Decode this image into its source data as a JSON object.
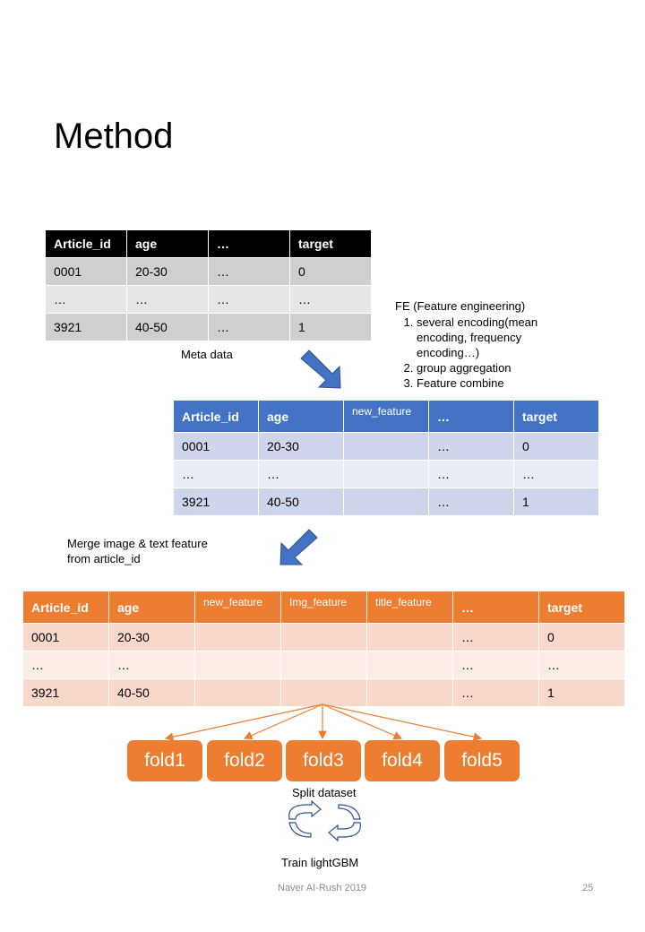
{
  "title": "Method",
  "table_meta": {
    "headers": [
      "Article_id",
      "age",
      "…",
      "target"
    ],
    "rows": [
      [
        "0001",
        "20-30",
        "…",
        "0"
      ],
      [
        "…",
        "…",
        "…",
        "…"
      ],
      [
        "3921",
        "40-50",
        "…",
        "1"
      ]
    ],
    "caption": "Meta data"
  },
  "fe_note": {
    "title": "FE (Feature engineering)",
    "items": [
      "several encoding(mean encoding, frequency encoding…)",
      "group aggregation",
      "Feature combine"
    ]
  },
  "table_fe": {
    "headers": [
      "Article_id",
      "age",
      "new_feature",
      "…",
      "target"
    ],
    "rows": [
      [
        "0001",
        "20-30",
        "",
        "…",
        "0"
      ],
      [
        "…",
        "…",
        "",
        "…",
        "…"
      ],
      [
        "3921",
        "40-50",
        "",
        "…",
        "1"
      ]
    ]
  },
  "merge_note": [
    "Merge image & text feature",
    "from article_id"
  ],
  "table_merge": {
    "headers": [
      "Article_id",
      "age",
      "new_feature",
      "Img_feature",
      "title_feature",
      "…",
      "target"
    ],
    "rows": [
      [
        "0001",
        "20-30",
        "",
        "",
        "",
        "…",
        "0"
      ],
      [
        "…",
        "…",
        "",
        "",
        "",
        "…",
        "…"
      ],
      [
        "3921",
        "40-50",
        "",
        "",
        "",
        "…",
        "1"
      ]
    ]
  },
  "folds": [
    "fold1",
    "fold2",
    "fold3",
    "fold4",
    "fold5"
  ],
  "split_label": "Split dataset",
  "train_label": "Train lightGBM",
  "footer": {
    "center": "Naver AI-Rush 2019",
    "page": "25"
  },
  "colors": {
    "meta_header": "#000000",
    "fe_header": "#4472c4",
    "merge_header": "#ed7d31",
    "arrow_blue": "#4472c4",
    "fold": "#ed7d31"
  }
}
